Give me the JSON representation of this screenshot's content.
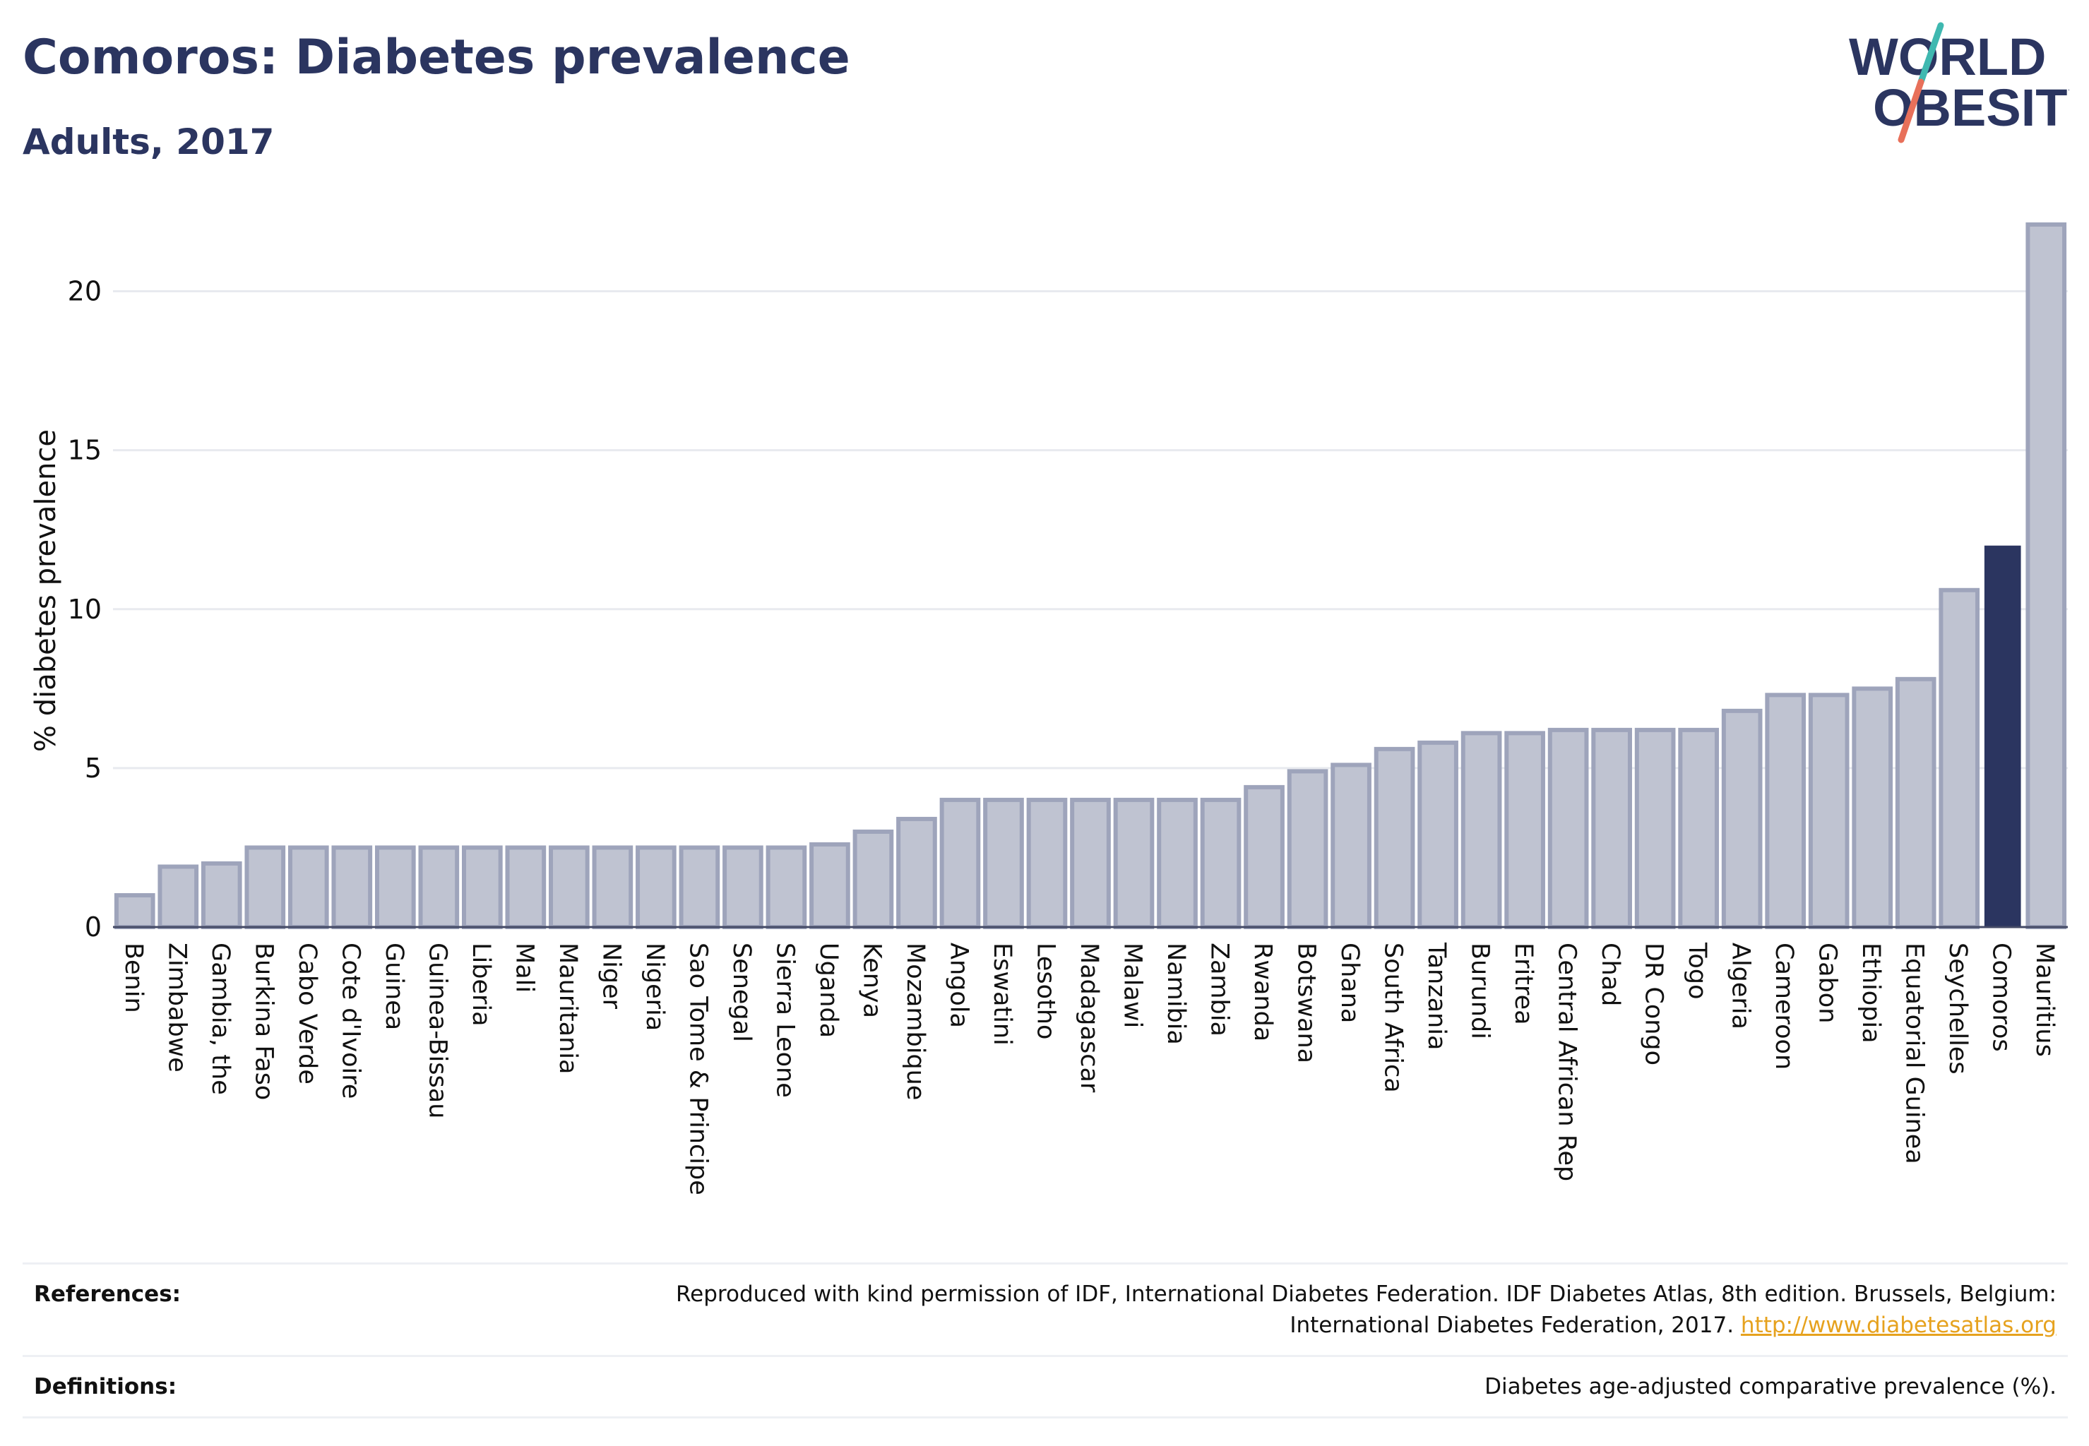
{
  "header": {
    "title": "Comoros: Diabetes prevalence",
    "subtitle": "Adults, 2017"
  },
  "logo": {
    "line1": "WORLD",
    "line2": "OBESITY",
    "colors": {
      "text": "#2b3560",
      "slash_top": "#3fb8b0",
      "slash_bottom": "#e8705a"
    }
  },
  "chart_data": {
    "type": "bar",
    "title": "Comoros: Diabetes prevalence",
    "subtitle": "Adults, 2017",
    "ylabel": "% diabetes prevalence",
    "xlabel": "",
    "ylim": [
      0,
      22.5
    ],
    "yticks": [
      0,
      5,
      10,
      15,
      20
    ],
    "grid": true,
    "legend": "none",
    "highlight": "Comoros",
    "colors": {
      "bar": "#bfc3d1",
      "bar_border": "#9ea4bb",
      "highlight": "#2b3560"
    },
    "categories": [
      "Benin",
      "Zimbabwe",
      "Gambia, the",
      "Burkina Faso",
      "Cabo Verde",
      "Cote d'Ivoire",
      "Guinea",
      "Guinea-Bissau",
      "Liberia",
      "Mali",
      "Mauritania",
      "Niger",
      "Nigeria",
      "Sao Tome & Principe",
      "Senegal",
      "Sierra Leone",
      "Uganda",
      "Kenya",
      "Mozambique",
      "Angola",
      "Eswatini",
      "Lesotho",
      "Madagascar",
      "Malawi",
      "Namibia",
      "Zambia",
      "Rwanda",
      "Botswana",
      "Ghana",
      "South Africa",
      "Tanzania",
      "Burundi",
      "Eritrea",
      "Central African Rep",
      "Chad",
      "DR Congo",
      "Togo",
      "Algeria",
      "Cameroon",
      "Gabon",
      "Ethiopia",
      "Equatorial Guinea",
      "Seychelles",
      "Comoros",
      "Mauritius"
    ],
    "values": [
      1.0,
      1.9,
      2.0,
      2.5,
      2.5,
      2.5,
      2.5,
      2.5,
      2.5,
      2.5,
      2.5,
      2.5,
      2.5,
      2.5,
      2.5,
      2.5,
      2.6,
      3.0,
      3.4,
      4.0,
      4.0,
      4.0,
      4.0,
      4.0,
      4.0,
      4.0,
      4.4,
      4.9,
      5.1,
      5.6,
      5.8,
      6.1,
      6.1,
      6.2,
      6.2,
      6.2,
      6.2,
      6.8,
      7.3,
      7.3,
      7.5,
      7.8,
      10.6,
      12.0,
      22.1
    ]
  },
  "footer": {
    "references_label": "References:",
    "references_text_1": "Reproduced with kind permission of IDF, International Diabetes Federation. IDF Diabetes Atlas, 8th edition. Brussels, Belgium:",
    "references_text_2": "International Diabetes Federation, 2017.",
    "references_link": "http://www.diabetesatlas.org",
    "definitions_label": "Definitions:",
    "definitions_text": "Diabetes age-adjusted comparative prevalence (%)."
  }
}
